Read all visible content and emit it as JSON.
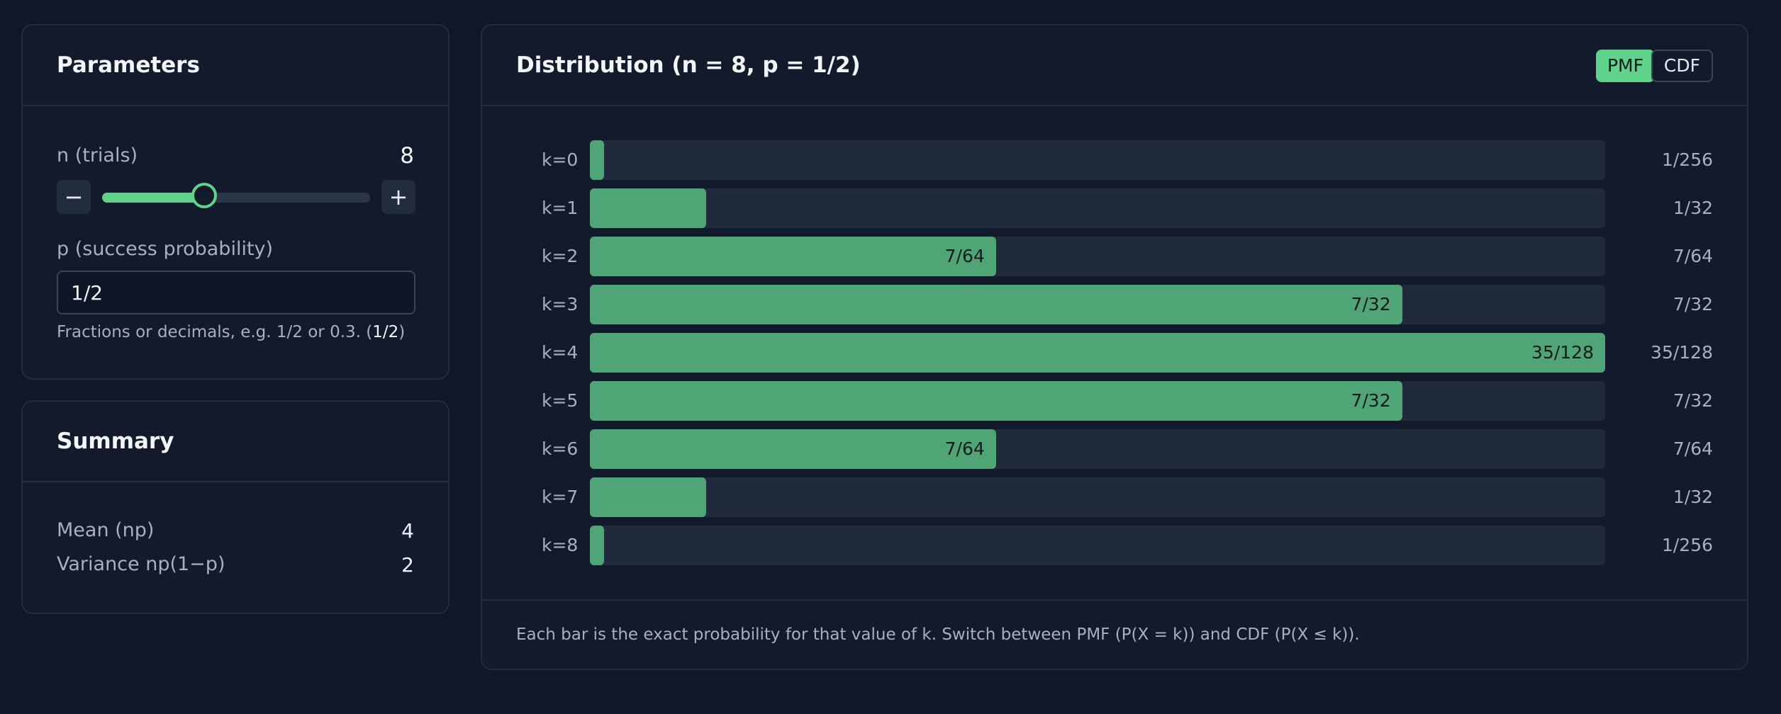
{
  "parameters": {
    "title": "Parameters",
    "n_label": "n (trials)",
    "n_value": "8",
    "n_slider_fraction": 0.38,
    "decrement_label": "−",
    "increment_label": "+",
    "p_label": "p (success probability)",
    "p_value": "1/2",
    "p_hint": "Fractions or decimals, e.g. 1/2 or 0.3. (",
    "p_hint_value": "1/2",
    "p_hint_end": ")"
  },
  "summary": {
    "title": "Summary",
    "rows": [
      {
        "label": "Mean (np)",
        "value": "4"
      },
      {
        "label": "Variance np(1−p)",
        "value": "2"
      }
    ]
  },
  "distribution": {
    "title": "Distribution (n = 8, p = 1/2)",
    "toggle_pmf": "PMF",
    "toggle_cdf": "CDF",
    "active_mode": "PMF",
    "footer": "Each bar is the exact probability for that value of k. Switch between PMF (P(X = k)) and CDF (P(X ≤ k)).",
    "colors": {
      "bar": "#4fa576",
      "accent": "#5fd38a"
    }
  },
  "chart_data": {
    "type": "bar",
    "orientation": "horizontal",
    "categories": [
      "k=0",
      "k=1",
      "k=2",
      "k=3",
      "k=4",
      "k=5",
      "k=6",
      "k=7",
      "k=8"
    ],
    "values": [
      0.00390625,
      0.03125,
      0.109375,
      0.21875,
      0.2734375,
      0.21875,
      0.109375,
      0.03125,
      0.00390625
    ],
    "value_labels": [
      "1/256",
      "1/32",
      "7/64",
      "7/32",
      "35/128",
      "7/32",
      "7/64",
      "1/32",
      "1/256"
    ],
    "inside_labels": [
      "",
      "",
      "7/64",
      "7/32",
      "35/128",
      "7/32",
      "7/64",
      "",
      ""
    ],
    "xlim": [
      0,
      0.2734375
    ],
    "title": "Distribution (n = 8, p = 1/2)"
  }
}
